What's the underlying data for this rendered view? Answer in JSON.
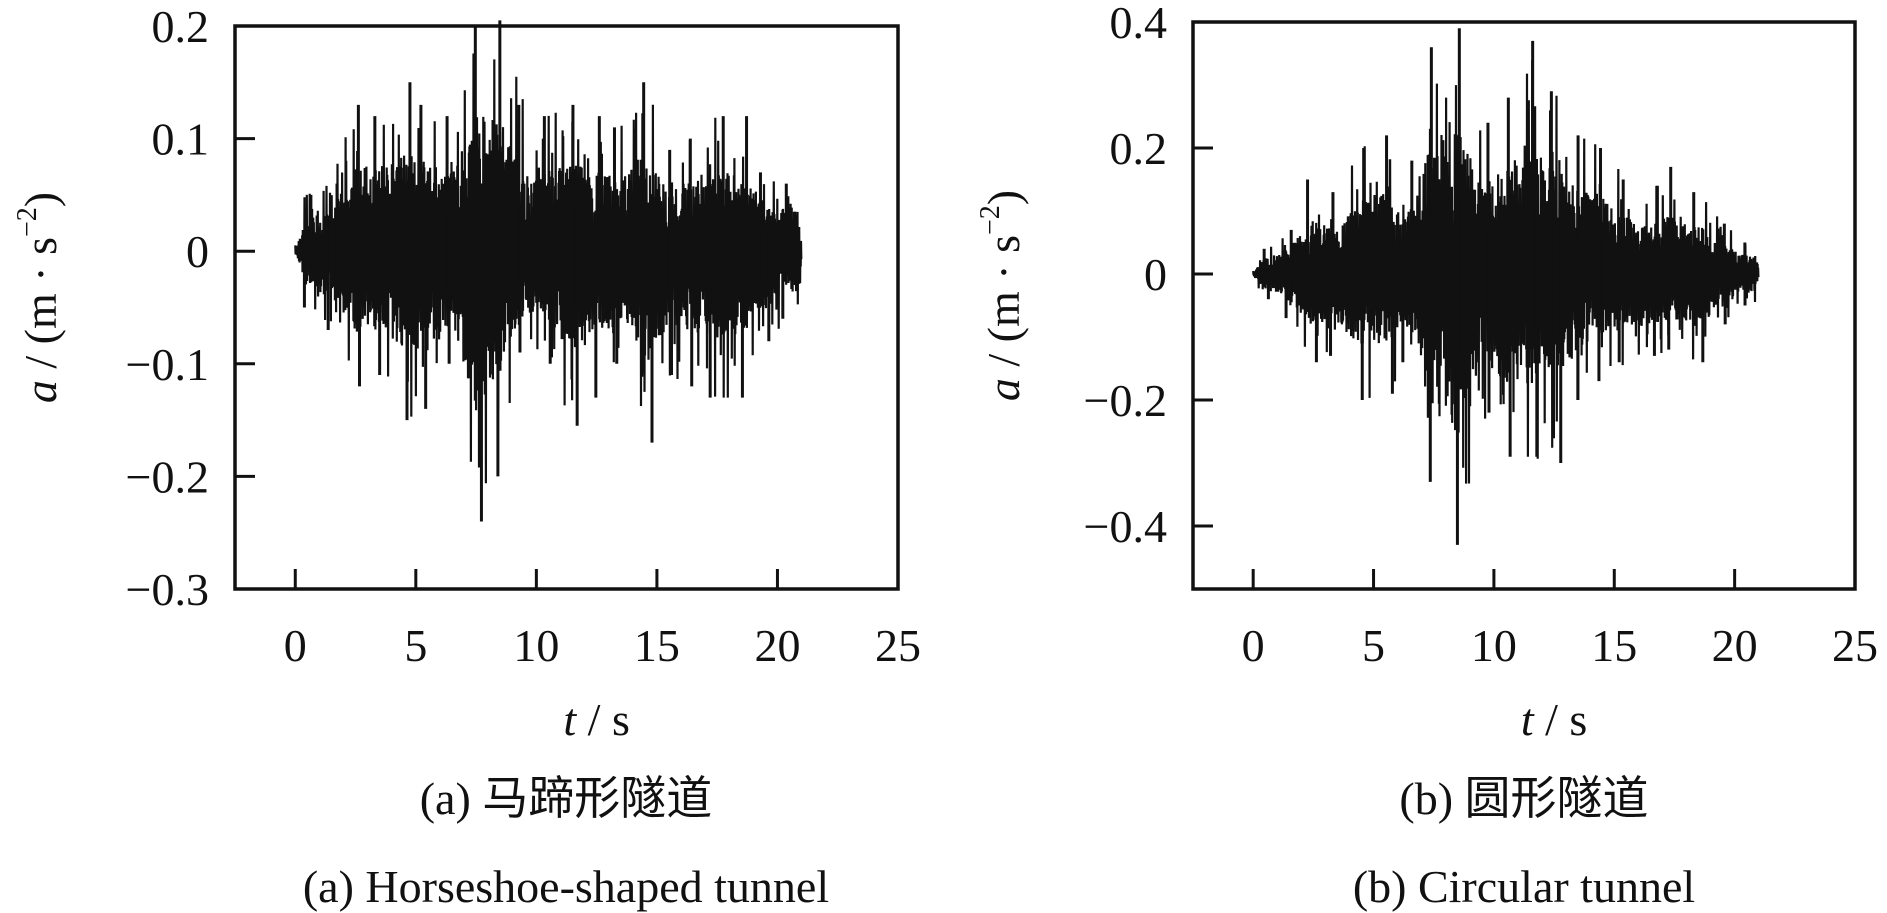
{
  "chart_data": [
    {
      "type": "line",
      "panel": "a",
      "caption_cn": "(a)  马蹄形隧道",
      "caption_en": "(a)  Horseshoe-shaped tunnel",
      "xlabel_var": "t",
      "xlabel_unit": " / s",
      "ylabel_var": "a",
      "ylabel_unit": " / (m · s",
      "ylabel_exp": "−2",
      "ylabel_close": ")",
      "xlim": [
        -2.5,
        25
      ],
      "ylim": [
        -0.3,
        0.2
      ],
      "xticks": [
        0,
        5,
        10,
        15,
        20,
        25
      ],
      "xtick_labels": [
        "0",
        "5",
        "10",
        "15",
        "20",
        "25"
      ],
      "yticks": [
        0.2,
        0.1,
        0,
        -0.1,
        -0.2,
        -0.3
      ],
      "ytick_labels": [
        "0.2",
        "0.1",
        "0",
        "−0.1",
        "−0.2",
        "−0.3"
      ],
      "grid": false,
      "line_color": "#111111",
      "duration_s": 21,
      "envelope_time_s": [
        0,
        1,
        2,
        3,
        4,
        5,
        6,
        7,
        8,
        9,
        10,
        11,
        12,
        13,
        14,
        15,
        16,
        17,
        18,
        19,
        20
      ],
      "envelope_upper": [
        0.05,
        0.06,
        0.13,
        0.12,
        0.15,
        0.13,
        0.12,
        0.2,
        0.205,
        0.13,
        0.12,
        0.13,
        0.12,
        0.11,
        0.15,
        0.09,
        0.1,
        0.12,
        0.12,
        0.07,
        0.06
      ],
      "envelope_lower": [
        -0.05,
        -0.07,
        -0.12,
        -0.11,
        -0.15,
        -0.14,
        -0.1,
        -0.24,
        -0.2,
        -0.09,
        -0.1,
        -0.155,
        -0.13,
        -0.1,
        -0.17,
        -0.11,
        -0.12,
        -0.13,
        -0.13,
        -0.08,
        -0.06
      ]
    },
    {
      "type": "line",
      "panel": "b",
      "caption_cn": "(b)  圆形隧道",
      "caption_en": "(b)  Circular tunnel",
      "xlabel_var": "t",
      "xlabel_unit": " / s",
      "ylabel_var": "a",
      "ylabel_unit": " / (m · s",
      "ylabel_exp": "−2",
      "ylabel_close": ")",
      "xlim": [
        -2.5,
        25
      ],
      "ylim": [
        -0.5,
        0.4
      ],
      "xticks": [
        0,
        5,
        10,
        15,
        20,
        25
      ],
      "xtick_labels": [
        "0",
        "5",
        "10",
        "15",
        "20",
        "25"
      ],
      "yticks": [
        0.4,
        0.2,
        0,
        -0.2,
        -0.4
      ],
      "ytick_labels": [
        "0.4",
        "0.2",
        "0",
        "−0.2",
        "−0.4"
      ],
      "grid": false,
      "line_color": "#111111",
      "duration_s": 21,
      "envelope_time_s": [
        0,
        1,
        2,
        3,
        4,
        5,
        6,
        7,
        8,
        9,
        10,
        11,
        12,
        13,
        14,
        15,
        16,
        17,
        18,
        19,
        20
      ],
      "envelope_upper": [
        0.04,
        0.07,
        0.15,
        0.13,
        0.2,
        0.22,
        0.18,
        0.36,
        0.39,
        0.24,
        0.28,
        0.37,
        0.29,
        0.22,
        0.2,
        0.15,
        0.14,
        0.17,
        0.13,
        0.08,
        0.05
      ],
      "envelope_lower": [
        -0.04,
        -0.07,
        -0.14,
        -0.13,
        -0.2,
        -0.19,
        -0.14,
        -0.33,
        -0.43,
        -0.22,
        -0.29,
        -0.29,
        -0.3,
        -0.2,
        -0.17,
        -0.14,
        -0.13,
        -0.12,
        -0.14,
        -0.08,
        -0.05
      ]
    }
  ]
}
